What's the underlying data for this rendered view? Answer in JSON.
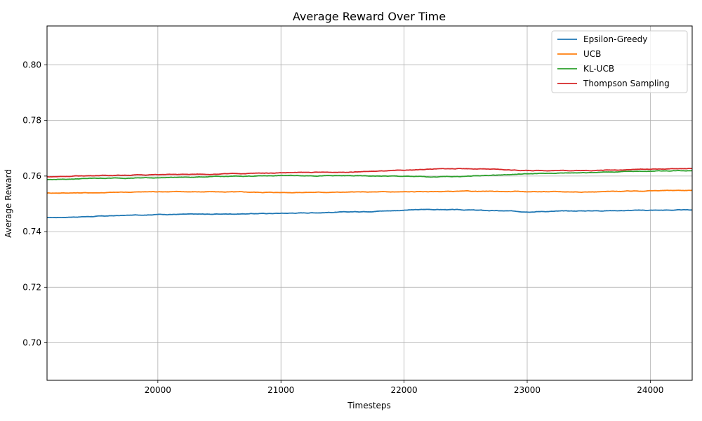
{
  "chart_data": {
    "type": "line",
    "title": "Average Reward Over Time",
    "xlabel": "Timesteps",
    "ylabel": "Average Reward",
    "xlim": [
      19100,
      24340
    ],
    "ylim": [
      0.6865,
      0.814
    ],
    "xticks": [
      20000,
      21000,
      22000,
      23000,
      24000
    ],
    "yticks": [
      0.7,
      0.72,
      0.74,
      0.76,
      0.78,
      0.8
    ],
    "ytick_labels": [
      "0.70",
      "0.72",
      "0.74",
      "0.76",
      "0.78",
      "0.80"
    ],
    "grid": true,
    "legend_position": "top-right",
    "x": [
      19100,
      19500,
      20000,
      20500,
      21000,
      21500,
      22000,
      22200,
      22500,
      23000,
      23500,
      24000,
      24340
    ],
    "series": [
      {
        "name": "Epsilon-Greedy",
        "color": "#1f77b4",
        "values": [
          0.745,
          0.7455,
          0.7462,
          0.7463,
          0.7466,
          0.747,
          0.7477,
          0.748,
          0.7478,
          0.7472,
          0.7475,
          0.7477,
          0.7478
        ]
      },
      {
        "name": "UCB",
        "color": "#ff7f0e",
        "values": [
          0.7539,
          0.754,
          0.7544,
          0.7543,
          0.7541,
          0.7542,
          0.7543,
          0.7544,
          0.7545,
          0.7544,
          0.7543,
          0.7547,
          0.7549
        ]
      },
      {
        "name": "KL-UCB",
        "color": "#2ca02c",
        "values": [
          0.7587,
          0.7592,
          0.7594,
          0.7598,
          0.7602,
          0.7601,
          0.7599,
          0.7597,
          0.7599,
          0.7608,
          0.7613,
          0.7618,
          0.762
        ]
      },
      {
        "name": "Thompson Sampling",
        "color": "#d62728",
        "values": [
          0.7597,
          0.7602,
          0.7605,
          0.7607,
          0.7612,
          0.7614,
          0.762,
          0.7625,
          0.7627,
          0.762,
          0.762,
          0.7625,
          0.7627
        ]
      }
    ]
  }
}
